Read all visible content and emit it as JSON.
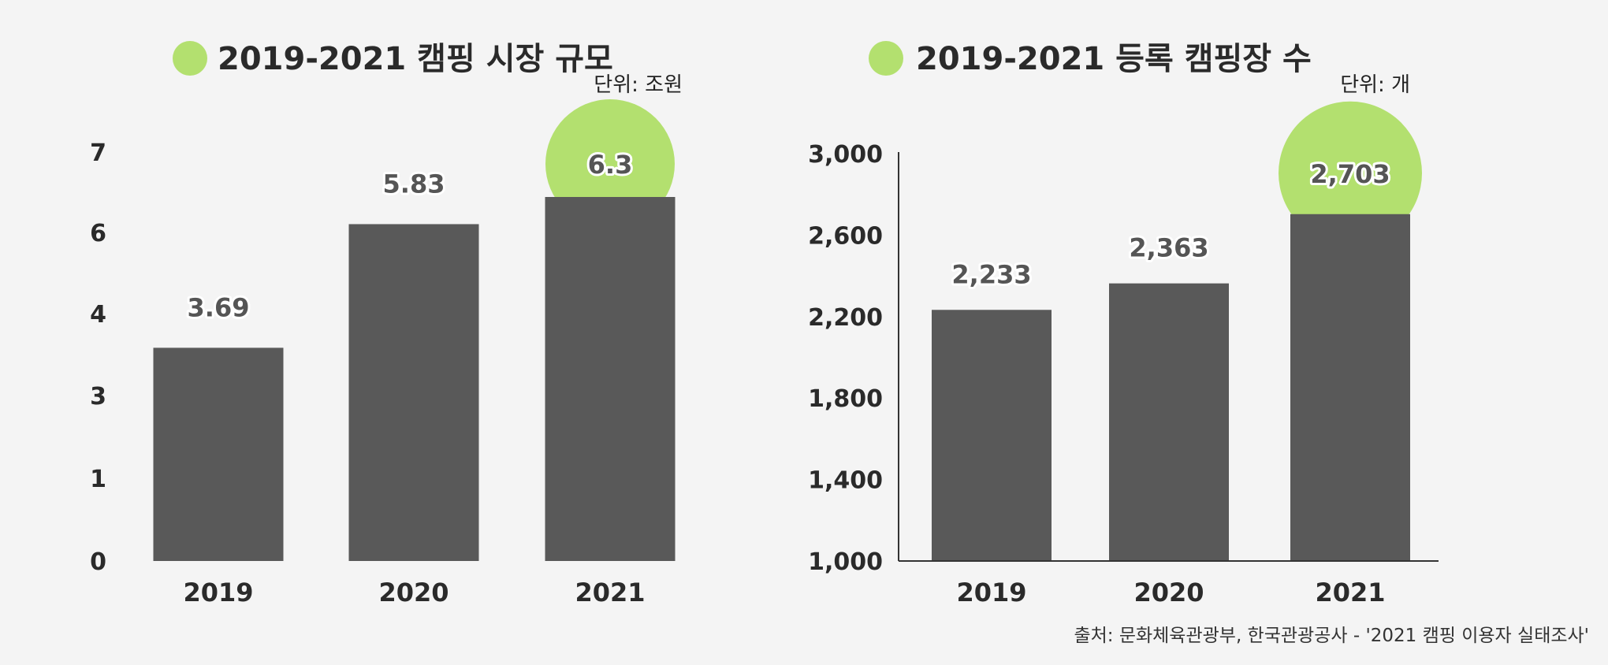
{
  "colors": {
    "bar": "#595959",
    "accent": "#b3e06f",
    "axis": "#333333"
  },
  "chart_data": [
    {
      "type": "bar",
      "title": "2019-2021 캠핑 시장 규모",
      "unit": "단위: 조원",
      "categories": [
        "2019",
        "2020",
        "2021"
      ],
      "values": [
        3.69,
        5.83,
        6.3
      ],
      "value_labels": [
        "3.69",
        "5.83",
        "6.3"
      ],
      "y_tick_labels": [
        "0",
        "1",
        "3",
        "4",
        "6",
        "7"
      ],
      "highlight_index": 2,
      "axis_line": false
    },
    {
      "type": "bar",
      "title": "2019-2021 등록 캠핑장 수",
      "unit": "단위: 개",
      "categories": [
        "2019",
        "2020",
        "2021"
      ],
      "values": [
        2233,
        2363,
        2703
      ],
      "value_labels": [
        "2,233",
        "2,363",
        "2,703"
      ],
      "y_tick_values": [
        1000,
        1400,
        1800,
        2200,
        2600,
        3000
      ],
      "y_tick_labels": [
        "1,000",
        "1,400",
        "1,800",
        "2,200",
        "2,600",
        "3,000"
      ],
      "ylim": [
        1000,
        3000
      ],
      "highlight_index": 2,
      "axis_line": true
    }
  ],
  "source": "출처: 문화체육관광부, 한국관광공사 - '2021 캠핑 이용자 실태조사'"
}
